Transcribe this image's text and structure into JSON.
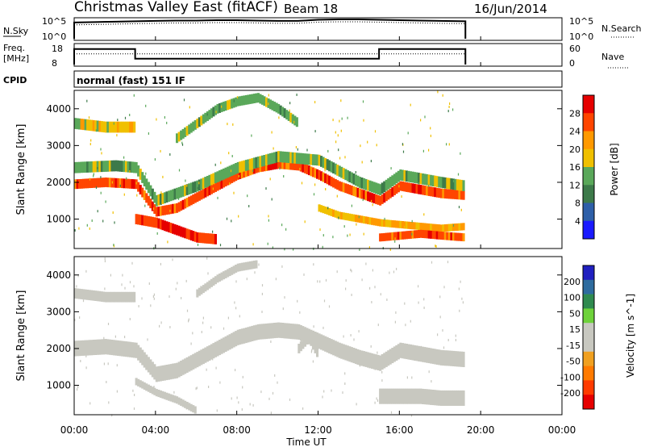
{
  "header": {
    "station": "Christmas Valley East (fitACF)",
    "beam": "Beam 18",
    "date": "16/Jun/2014"
  },
  "panels": {
    "nsky": {
      "label": "N.Sky",
      "ticks": [
        "10^5",
        "10^0"
      ],
      "right_ticks": [
        "10^5",
        "10^0"
      ],
      "right_label": "N.Search"
    },
    "freq": {
      "label_line1": "Freq.",
      "label_line2": "[MHz]",
      "ticks": [
        "18",
        "8"
      ],
      "right_ticks": [
        "60",
        "0"
      ],
      "right_label": "Nave"
    },
    "cpid": {
      "label": "CPID",
      "mode": "normal (fast) 151 IF"
    }
  },
  "time_axis": {
    "label": "Time UT",
    "ticks": [
      "00:00",
      "04:00",
      "08:00",
      "12:00",
      "16:00",
      "20:00",
      "00:00"
    ]
  },
  "colors": {
    "power_scale": [
      "#1a1aff",
      "#2e5fa8",
      "#3d7a4a",
      "#5aa85a",
      "#f0c000",
      "#ff9900",
      "#ff4500",
      "#e60000"
    ],
    "velocity_scale": [
      "#2020c0",
      "#2e6b9e",
      "#2f8a4f",
      "#6ed23a",
      "#c8c8c0",
      "#c8c8c0",
      "#f0a020",
      "#ff7a00",
      "#ff3b00",
      "#e60000"
    ]
  },
  "chart_data": [
    {
      "type": "line",
      "name": "nsky",
      "x_hours": [
        0,
        1,
        2,
        3,
        4,
        5,
        6,
        7,
        8,
        9,
        10,
        11,
        12,
        13,
        14,
        15,
        16,
        17,
        18,
        19.25
      ],
      "values_log": [
        4.2,
        4.3,
        4.4,
        4.5,
        4.6,
        4.7,
        4.7,
        4.8,
        4.8,
        4.7,
        4.6,
        4.6,
        4.9,
        5.0,
        5.0,
        4.9,
        4.8,
        4.7,
        4.6,
        4.5
      ],
      "ylim_log": [
        0,
        5
      ],
      "xlim": [
        0,
        24
      ]
    },
    {
      "type": "line",
      "name": "freq",
      "segments": [
        {
          "start": 0,
          "end": 3,
          "value": 16
        },
        {
          "start": 3,
          "end": 15,
          "value": 11
        },
        {
          "start": 15,
          "end": 19.25,
          "value": 16
        }
      ],
      "nave_value": 16,
      "ylim": [
        8,
        18
      ]
    },
    {
      "type": "heatmap",
      "name": "power",
      "ylabel": "Slant Range [km]",
      "y_ticks": [
        "1000",
        "2000",
        "3000",
        "4000"
      ],
      "ylim": [
        200,
        4500
      ],
      "colorbar_label": "Power [dB]",
      "colorbar_ticks": [
        "28",
        "24",
        "20",
        "16",
        "12",
        "8",
        "4"
      ],
      "clim": [
        0,
        32
      ],
      "bands": [
        {
          "points": [
            [
              0,
              1950
            ],
            [
              1.5,
              2000
            ],
            [
              3,
              1950
            ],
            [
              4,
              1200
            ],
            [
              5,
              1300
            ],
            [
              6,
              1600
            ],
            [
              7,
              1900
            ],
            [
              8,
              2200
            ],
            [
              9,
              2400
            ],
            [
              10,
              2500
            ],
            [
              11,
              2450
            ],
            [
              12,
              2200
            ],
            [
              13,
              1900
            ],
            [
              14,
              1700
            ],
            [
              15,
              1500
            ],
            [
              16,
              1900
            ],
            [
              17,
              1800
            ],
            [
              18,
              1700
            ],
            [
              19.2,
              1650
            ]
          ],
          "width": 260,
          "level": 26
        },
        {
          "points": [
            [
              0,
              2400
            ],
            [
              2,
              2450
            ],
            [
              3,
              2400
            ],
            [
              4,
              1500
            ],
            [
              6,
              1900
            ],
            [
              8,
              2400
            ],
            [
              10,
              2700
            ],
            [
              12,
              2600
            ],
            [
              14,
              2000
            ],
            [
              15,
              1800
            ],
            [
              16,
              2200
            ],
            [
              18,
              2000
            ],
            [
              19.2,
              1900
            ]
          ],
          "width": 300,
          "level": 14
        },
        {
          "points": [
            [
              3,
              1000
            ],
            [
              4,
              900
            ],
            [
              5,
              700
            ],
            [
              6,
              500
            ],
            [
              7,
              450
            ]
          ],
          "width": 280,
          "level": 28
        },
        {
          "points": [
            [
              0,
              3600
            ],
            [
              1.5,
              3500
            ],
            [
              3,
              3500
            ]
          ],
          "width": 300,
          "level": 18
        },
        {
          "points": [
            [
              5,
              3200
            ],
            [
              6,
              3600
            ],
            [
              7,
              4000
            ],
            [
              8,
              4200
            ],
            [
              9,
              4300
            ],
            [
              10,
              4000
            ],
            [
              11,
              3600
            ]
          ],
          "width": 260,
          "level": 14
        },
        {
          "points": [
            [
              12,
              1300
            ],
            [
              13,
              1100
            ],
            [
              14,
              1000
            ],
            [
              15,
              900
            ],
            [
              16,
              850
            ],
            [
              17,
              800
            ],
            [
              18,
              750
            ],
            [
              19.2,
              800
            ]
          ],
          "width": 200,
          "level": 20
        },
        {
          "points": [
            [
              15,
              500
            ],
            [
              16,
              550
            ],
            [
              17,
              600
            ],
            [
              18,
              550
            ],
            [
              19.2,
              500
            ]
          ],
          "width": 220,
          "level": 26
        }
      ]
    },
    {
      "type": "heatmap",
      "name": "velocity",
      "ylabel": "Slant Range [km]",
      "y_ticks": [
        "1000",
        "2000",
        "3000",
        "4000"
      ],
      "ylim": [
        200,
        4500
      ],
      "colorbar_label": "Velocity [m s^-1]",
      "colorbar_ticks": [
        "200",
        "100",
        "50",
        "15",
        "-15",
        "-50",
        "-100",
        "-200"
      ],
      "clim": [
        -250,
        250
      ],
      "bands": [
        {
          "points": [
            [
              0,
              2000
            ],
            [
              1.5,
              2050
            ],
            [
              3,
              1950
            ],
            [
              4,
              1300
            ],
            [
              5,
              1400
            ],
            [
              6,
              1700
            ],
            [
              7,
              2000
            ],
            [
              8,
              2300
            ],
            [
              9,
              2450
            ],
            [
              10,
              2500
            ],
            [
              11,
              2450
            ],
            [
              12,
              2200
            ],
            [
              13,
              1950
            ],
            [
              14,
              1750
            ],
            [
              15,
              1600
            ],
            [
              16,
              1950
            ],
            [
              17,
              1850
            ],
            [
              18,
              1750
            ],
            [
              19.2,
              1700
            ]
          ],
          "width": 420,
          "level": 0
        },
        {
          "points": [
            [
              15,
              700
            ],
            [
              16,
              700
            ],
            [
              17,
              700
            ],
            [
              18,
              650
            ],
            [
              19.2,
              650
            ]
          ],
          "width": 420,
          "level": 0
        },
        {
          "points": [
            [
              0,
              3500
            ],
            [
              1.5,
              3400
            ],
            [
              3,
              3400
            ]
          ],
          "width": 280,
          "level": -40
        },
        {
          "points": [
            [
              6,
              3500
            ],
            [
              7,
              3900
            ],
            [
              8,
              4200
            ],
            [
              9,
              4300
            ]
          ],
          "width": 220,
          "level": -40
        },
        {
          "points": [
            [
              11,
              2000
            ],
            [
              11.5,
              2300
            ],
            [
              12,
              1800
            ]
          ],
          "width": 260,
          "level": 40
        },
        {
          "points": [
            [
              3,
              1100
            ],
            [
              4,
              800
            ],
            [
              5,
              600
            ],
            [
              6,
              300
            ]
          ],
          "width": 200,
          "level": 40
        }
      ]
    }
  ]
}
